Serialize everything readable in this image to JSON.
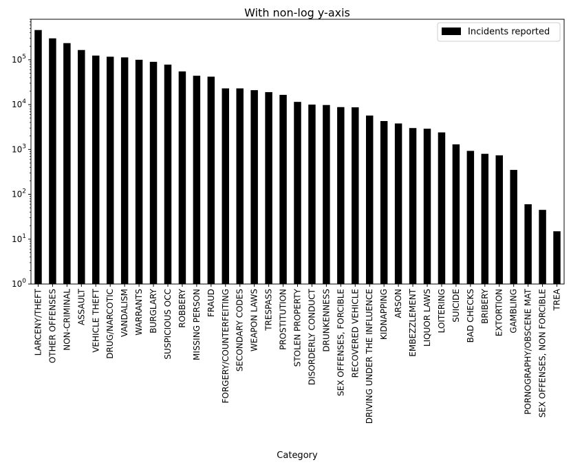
{
  "chart_data": {
    "type": "bar",
    "title": "With non-log y-axis",
    "xlabel": "Category",
    "ylabel": "",
    "yscale": "log",
    "ylim": [
      1,
      800000
    ],
    "yticks": [
      {
        "value": 1,
        "base": "10",
        "exp": "0"
      },
      {
        "value": 10,
        "base": "10",
        "exp": "1"
      },
      {
        "value": 100,
        "base": "10",
        "exp": "2"
      },
      {
        "value": 1000,
        "base": "10",
        "exp": "3"
      },
      {
        "value": 10000,
        "base": "10",
        "exp": "4"
      },
      {
        "value": 100000,
        "base": "10",
        "exp": "5"
      }
    ],
    "legend": {
      "position": "top-right",
      "label": "Incidents reported"
    },
    "grid": false,
    "bar_color": "#000000",
    "categories": [
      "LARCENY/THEFT",
      "OTHER OFFENSES",
      "NON-CRIMINAL",
      "ASSAULT",
      "VEHICLE THEFT",
      "DRUG/NARCOTIC",
      "VANDALISM",
      "WARRANTS",
      "BURGLARY",
      "SUSPICIOUS OCC",
      "ROBBERY",
      "MISSING PERSON",
      "FRAUD",
      "FORGERY/COUNTERFEITING",
      "SECONDARY CODES",
      "WEAPON LAWS",
      "TRESPASS",
      "PROSTITUTION",
      "STOLEN PROPERTY",
      "DISORDERLY CONDUCT",
      "DRUNKENNESS",
      "SEX OFFENSES, FORCIBLE",
      "RECOVERED VEHICLE",
      "DRIVING UNDER THE INFLUENCE",
      "KIDNAPPING",
      "ARSON",
      "EMBEZZLEMENT",
      "LIQUOR LAWS",
      "LOITERING",
      "SUICIDE",
      "BAD CHECKS",
      "BRIBERY",
      "EXTORTION",
      "GAMBLING",
      "PORNOGRAPHY/OBSCENE MAT",
      "SEX OFFENSES, NON FORCIBLE",
      "TREA"
    ],
    "series": [
      {
        "name": "Incidents reported",
        "values": [
          460000,
          300000,
          235000,
          165000,
          124000,
          117000,
          113000,
          100000,
          90000,
          78000,
          55000,
          44000,
          42000,
          23000,
          23000,
          21000,
          19000,
          16500,
          11500,
          10000,
          9800,
          8800,
          8700,
          5700,
          4300,
          3800,
          3000,
          2900,
          2400,
          1300,
          930,
          800,
          740,
          350,
          60,
          45,
          15
        ]
      }
    ]
  }
}
